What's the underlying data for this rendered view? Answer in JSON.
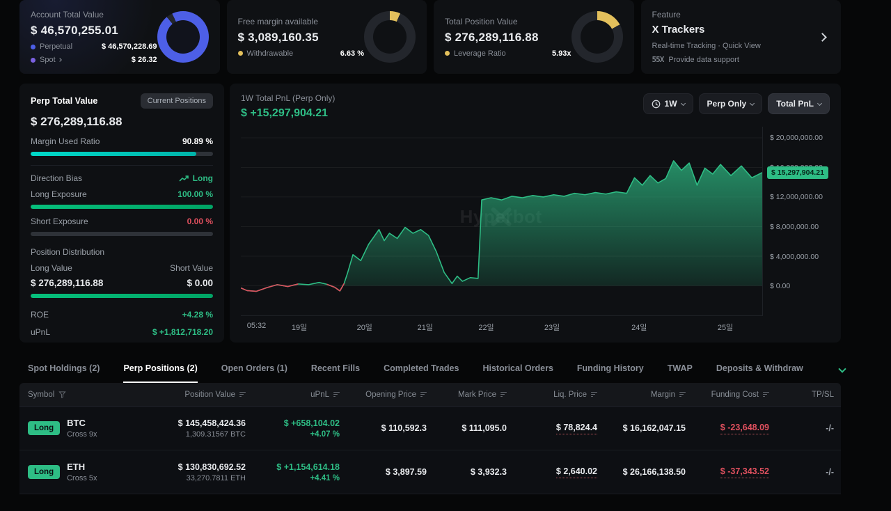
{
  "colors": {
    "green": "#2ebd85",
    "red": "#e0505e",
    "teal": "#00cbc0",
    "blue": "#4d5fe6",
    "yellow": "#e3c05c",
    "purple": "#7b61e0"
  },
  "top_cards": {
    "account": {
      "label": "Account Total Value",
      "value": "$ 46,570,255.01",
      "perpetual_label": "Perpetual",
      "perpetual_value": "$ 46,570,228.69",
      "spot_label": "Spot",
      "spot_value": "$ 26.32",
      "donut_pct": 96
    },
    "free_margin": {
      "label": "Free margin available",
      "value": "$ 3,089,160.35",
      "row_label": "Withdrawable",
      "row_value": "6.63 %",
      "donut_pct": 6.63
    },
    "position": {
      "label": "Total Position Value",
      "value": "$ 276,289,116.88",
      "row_label": "Leverage Ratio",
      "row_value": "5.93x",
      "donut_pct": 17
    },
    "feature": {
      "label": "Feature",
      "title": "X Trackers",
      "subtitle": "Real-time Tracking · Quick View",
      "support_logo": "55X",
      "support_text": "Provide data support"
    }
  },
  "perp_panel": {
    "tab_total": "Perp Total Value",
    "tab_positions": "Current Positions",
    "total": "$ 276,289,116.88",
    "margin_used_label": "Margin Used Ratio",
    "margin_used_value": "90.89 %",
    "margin_used_pct": 90.89,
    "direction_bias_label": "Direction Bias",
    "direction_bias_value": "Long",
    "long_exposure_label": "Long Exposure",
    "long_exposure_value": "100.00 %",
    "long_exposure_pct": 100,
    "short_exposure_label": "Short Exposure",
    "short_exposure_value": "0.00 %",
    "short_exposure_pct": 0,
    "distribution_label": "Position Distribution",
    "long_value_label": "Long Value",
    "short_value_label": "Short Value",
    "long_value": "$ 276,289,116.88",
    "short_value": "$ 0.00",
    "distribution_long_pct": 100,
    "roe_label": "ROE",
    "roe_value": "+4.28 %",
    "upnl_label": "uPnL",
    "upnl_value": "$ +1,812,718.20"
  },
  "chart": {
    "title": "1W Total PnL (Perp Only)",
    "value": "$ +15,297,904.21",
    "range_control": "1W",
    "scope_control": "Perp Only",
    "metric_control": "Total PnL",
    "current_tag": "$ 15,297,904.21",
    "watermark": "Hyperbot",
    "chart_data": {
      "type": "area",
      "title": "1W Total PnL (Perp Only)",
      "unit": "USD (millions)",
      "ylim": [
        -4,
        21.5
      ],
      "yticks": [
        {
          "value": 20,
          "label": "$ 20,000,000.00"
        },
        {
          "value": 16,
          "label": "$ 16,000,000.00"
        },
        {
          "value": 12,
          "label": "$ 12,000,000.00"
        },
        {
          "value": 8,
          "label": "$ 8,000,000.00"
        },
        {
          "value": 4,
          "label": "$ 4,000,000.00"
        },
        {
          "value": 0,
          "label": "$ 0.00"
        }
      ],
      "xticks": [
        {
          "pos": 0.03,
          "label": "05:32"
        },
        {
          "pos": 0.112,
          "label": "19일"
        },
        {
          "pos": 0.237,
          "label": "20일"
        },
        {
          "pos": 0.353,
          "label": "21일"
        },
        {
          "pos": 0.47,
          "label": "22일"
        },
        {
          "pos": 0.596,
          "label": "23일"
        },
        {
          "pos": 0.763,
          "label": "24일"
        },
        {
          "pos": 0.928,
          "label": "25일"
        }
      ],
      "current_value": 15.2979,
      "points": [
        [
          0,
          -0.3
        ],
        [
          0.012,
          -0.65
        ],
        [
          0.03,
          -0.75
        ],
        [
          0.05,
          -0.25
        ],
        [
          0.07,
          0.15
        ],
        [
          0.09,
          -0.1
        ],
        [
          0.11,
          0.25
        ],
        [
          0.13,
          0.15
        ],
        [
          0.15,
          0.45
        ],
        [
          0.165,
          0.2
        ],
        [
          0.18,
          -0.2
        ],
        [
          0.19,
          -0.7
        ],
        [
          0.198,
          0.3
        ],
        [
          0.205,
          1.8
        ],
        [
          0.215,
          4.2
        ],
        [
          0.23,
          3.4
        ],
        [
          0.245,
          5.6
        ],
        [
          0.265,
          7.6
        ],
        [
          0.275,
          6.1
        ],
        [
          0.285,
          7.1
        ],
        [
          0.3,
          6.4
        ],
        [
          0.315,
          7.9
        ],
        [
          0.33,
          7.1
        ],
        [
          0.345,
          7.6
        ],
        [
          0.36,
          6.8
        ],
        [
          0.375,
          4.6
        ],
        [
          0.39,
          1.8
        ],
        [
          0.405,
          0.3
        ],
        [
          0.415,
          1.3
        ],
        [
          0.425,
          0.6
        ],
        [
          0.44,
          1.1
        ],
        [
          0.455,
          1.0
        ],
        [
          0.462,
          11.6
        ],
        [
          0.48,
          11.9
        ],
        [
          0.5,
          11.6
        ],
        [
          0.52,
          12.1
        ],
        [
          0.54,
          11.9
        ],
        [
          0.56,
          12.2
        ],
        [
          0.58,
          12.0
        ],
        [
          0.6,
          12.3
        ],
        [
          0.62,
          12.1
        ],
        [
          0.64,
          12.5
        ],
        [
          0.66,
          12.3
        ],
        [
          0.68,
          12.6
        ],
        [
          0.7,
          12.4
        ],
        [
          0.72,
          12.7
        ],
        [
          0.74,
          12.5
        ],
        [
          0.755,
          14.6
        ],
        [
          0.77,
          13.6
        ],
        [
          0.785,
          14.9
        ],
        [
          0.8,
          13.9
        ],
        [
          0.815,
          14.5
        ],
        [
          0.83,
          16.9
        ],
        [
          0.845,
          15.6
        ],
        [
          0.86,
          16.6
        ],
        [
          0.875,
          13.6
        ],
        [
          0.89,
          15.9
        ],
        [
          0.905,
          15.1
        ],
        [
          0.92,
          16.4
        ],
        [
          0.94,
          14.9
        ],
        [
          0.96,
          16.2
        ],
        [
          0.98,
          14.6
        ],
        [
          1,
          15.3
        ]
      ]
    }
  },
  "tabs": [
    "Spot Holdings (2)",
    "Perp Positions (2)",
    "Open Orders (1)",
    "Recent Fills",
    "Completed Trades",
    "Historical Orders",
    "Funding History",
    "TWAP",
    "Deposits & Withdraw"
  ],
  "table": {
    "columns": [
      "Symbol",
      "Position Value",
      "uPnL",
      "Opening Price",
      "Mark Price",
      "Liq. Price",
      "Margin",
      "Funding Cost",
      "TP/SL"
    ],
    "rows": [
      {
        "side": "Long",
        "symbol": "BTC",
        "leverage": "Cross 9x",
        "position_value": "$ 145,458,424.36",
        "position_size": "1,309.31567 BTC",
        "upnl": "$ +658,104.02",
        "upnl_pct": "+4.07 %",
        "opening_price": "$ 110,592.3",
        "mark_price": "$ 111,095.0",
        "liq_price": "$ 78,824.4",
        "margin": "$ 16,162,047.15",
        "funding_cost": "$ -23,648.09",
        "tpsl": "-/-"
      },
      {
        "side": "Long",
        "symbol": "ETH",
        "leverage": "Cross 5x",
        "position_value": "$ 130,830,692.52",
        "position_size": "33,270.7811 ETH",
        "upnl": "$ +1,154,614.18",
        "upnl_pct": "+4.41 %",
        "opening_price": "$ 3,897.59",
        "mark_price": "$ 3,932.3",
        "liq_price": "$ 2,640.02",
        "margin": "$ 26,166,138.50",
        "funding_cost": "$ -37,343.52",
        "tpsl": "-/-"
      }
    ]
  }
}
